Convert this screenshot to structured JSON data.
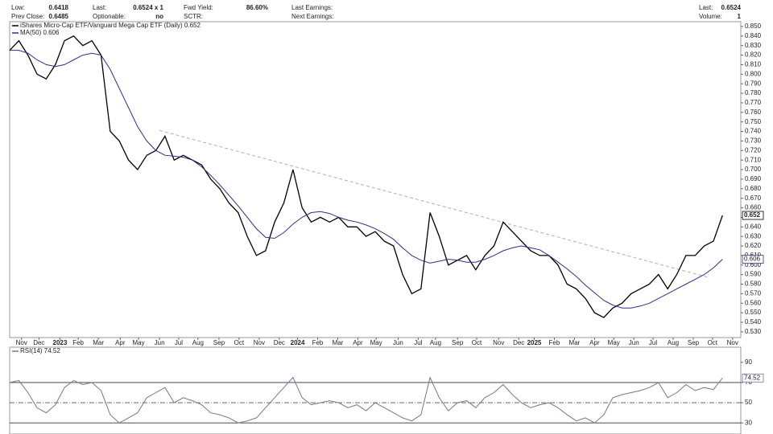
{
  "header": {
    "rows": [
      [
        {
          "label": "Low:",
          "value": "0.6418"
        },
        {
          "label": "Last:",
          "value": "0.6524 x 1"
        },
        {
          "label": "Fwd Yield:",
          "value": "86.60%"
        },
        {
          "label": "Last Earnings:"
        },
        {
          "label": "Last:",
          "value": "0.6524"
        }
      ],
      [
        {
          "label": "Prev Close:",
          "value": "0.6485"
        },
        {
          "label": "Optionable:",
          "value": "no"
        },
        {
          "label": "SCTR:"
        },
        {
          "label": "Next Earnings:"
        },
        {
          "label": "Volume:",
          "value": "1"
        }
      ]
    ]
  },
  "chart_data": [
    {
      "type": "line",
      "series": [
        {
          "name": "iShares Micro-Cap ETF/Vanguard Mega Cap ETF (Daily) 0.652",
          "color": "#000000",
          "values": [
            0.825,
            0.835,
            0.82,
            0.8,
            0.795,
            0.81,
            0.835,
            0.84,
            0.83,
            0.835,
            0.82,
            0.74,
            0.73,
            0.71,
            0.7,
            0.715,
            0.72,
            0.735,
            0.71,
            0.715,
            0.71,
            0.705,
            0.69,
            0.68,
            0.665,
            0.655,
            0.63,
            0.61,
            0.615,
            0.645,
            0.665,
            0.7,
            0.66,
            0.645,
            0.65,
            0.645,
            0.65,
            0.64,
            0.64,
            0.63,
            0.635,
            0.625,
            0.62,
            0.59,
            0.57,
            0.575,
            0.655,
            0.63,
            0.6,
            0.605,
            0.61,
            0.595,
            0.61,
            0.62,
            0.645,
            0.635,
            0.625,
            0.615,
            0.61,
            0.61,
            0.6,
            0.58,
            0.575,
            0.565,
            0.55,
            0.545,
            0.555,
            0.56,
            0.57,
            0.575,
            0.58,
            0.59,
            0.575,
            0.59,
            0.61,
            0.61,
            0.62,
            0.625,
            0.652
          ]
        },
        {
          "name": "MA(50) 0.606",
          "color": "#2e2e8a",
          "values": [
            0.825,
            0.825,
            0.822,
            0.815,
            0.81,
            0.808,
            0.81,
            0.815,
            0.82,
            0.822,
            0.82,
            0.805,
            0.785,
            0.765,
            0.745,
            0.73,
            0.72,
            0.715,
            0.714,
            0.713,
            0.71,
            0.703,
            0.694,
            0.684,
            0.673,
            0.662,
            0.65,
            0.638,
            0.629,
            0.628,
            0.634,
            0.643,
            0.65,
            0.655,
            0.656,
            0.654,
            0.65,
            0.647,
            0.645,
            0.642,
            0.638,
            0.633,
            0.627,
            0.618,
            0.61,
            0.605,
            0.602,
            0.604,
            0.606,
            0.605,
            0.603,
            0.603,
            0.606,
            0.61,
            0.615,
            0.618,
            0.62,
            0.618,
            0.616,
            0.61,
            0.603,
            0.596,
            0.588,
            0.579,
            0.571,
            0.563,
            0.558,
            0.555,
            0.555,
            0.557,
            0.56,
            0.565,
            0.57,
            0.575,
            0.58,
            0.585,
            0.59,
            0.597,
            0.606
          ]
        }
      ],
      "trendline": {
        "x": [
          16.4,
          76.5
        ],
        "y": [
          0.741,
          0.587
        ],
        "color": "#b0b0b0"
      },
      "xlim": [
        0,
        80
      ],
      "xticks": [
        {
          "value": 1.3,
          "label": "Nov"
        },
        {
          "value": 3.2,
          "label": "Dec"
        },
        {
          "value": 5.5,
          "label": "2023"
        },
        {
          "value": 7.5,
          "label": "Feb"
        },
        {
          "value": 9.7,
          "label": "Mar"
        },
        {
          "value": 12.1,
          "label": "Apr"
        },
        {
          "value": 14.1,
          "label": "May"
        },
        {
          "value": 16.4,
          "label": "Jun"
        },
        {
          "value": 18.5,
          "label": "Jul"
        },
        {
          "value": 20.6,
          "label": "Aug"
        },
        {
          "value": 22.9,
          "label": "Sep"
        },
        {
          "value": 25.1,
          "label": "Oct"
        },
        {
          "value": 27.3,
          "label": "Nov"
        },
        {
          "value": 29.5,
          "label": "Dec"
        },
        {
          "value": 31.5,
          "label": "2024"
        },
        {
          "value": 33.7,
          "label": "Feb"
        },
        {
          "value": 35.9,
          "label": "Mar"
        },
        {
          "value": 38.1,
          "label": "Apr"
        },
        {
          "value": 40.1,
          "label": "May"
        },
        {
          "value": 42.5,
          "label": "Jun"
        },
        {
          "value": 44.7,
          "label": "Jul"
        },
        {
          "value": 46.6,
          "label": "Aug"
        },
        {
          "value": 49,
          "label": "Sep"
        },
        {
          "value": 51.1,
          "label": "Oct"
        },
        {
          "value": 53.5,
          "label": "Nov"
        },
        {
          "value": 55.7,
          "label": "Dec"
        },
        {
          "value": 57.4,
          "label": "2025"
        },
        {
          "value": 59.6,
          "label": "Feb"
        },
        {
          "value": 61.8,
          "label": "Mar"
        },
        {
          "value": 64,
          "label": "Apr"
        },
        {
          "value": 66.1,
          "label": "May"
        },
        {
          "value": 68.3,
          "label": "Jun"
        },
        {
          "value": 70.4,
          "label": "Jul"
        },
        {
          "value": 72.6,
          "label": "Aug"
        },
        {
          "value": 74.8,
          "label": "Sep"
        },
        {
          "value": 76.9,
          "label": "Oct"
        },
        {
          "value": 79.1,
          "label": "Nov"
        }
      ],
      "ylim": [
        0.524,
        0.855
      ],
      "yticks": [
        {
          "value": 0.53,
          "label": "0.530"
        },
        {
          "value": 0.54,
          "label": "0.540"
        },
        {
          "value": 0.55,
          "label": "0.550"
        },
        {
          "value": 0.56,
          "label": "0.560"
        },
        {
          "value": 0.57,
          "label": "0.570"
        },
        {
          "value": 0.58,
          "label": "0.580"
        },
        {
          "value": 0.59,
          "label": "0.590"
        },
        {
          "value": 0.6,
          "label": "0.600"
        },
        {
          "value": 0.61,
          "label": "0.610"
        },
        {
          "value": 0.62,
          "label": "0.620"
        },
        {
          "value": 0.63,
          "label": "0.630"
        },
        {
          "value": 0.64,
          "label": "0.640"
        },
        {
          "value": 0.65,
          "label": "0.650"
        },
        {
          "value": 0.66,
          "label": "0.660"
        },
        {
          "value": 0.67,
          "label": "0.670"
        },
        {
          "value": 0.68,
          "label": "0.680"
        },
        {
          "value": 0.69,
          "label": "0.690"
        },
        {
          "value": 0.7,
          "label": "0.700"
        },
        {
          "value": 0.71,
          "label": "0.710"
        },
        {
          "value": 0.72,
          "label": "0.720"
        },
        {
          "value": 0.73,
          "label": "0.730"
        },
        {
          "value": 0.74,
          "label": "0.740"
        },
        {
          "value": 0.75,
          "label": "0.750"
        },
        {
          "value": 0.76,
          "label": "0.760"
        },
        {
          "value": 0.77,
          "label": "0.770"
        },
        {
          "value": 0.78,
          "label": "0.780"
        },
        {
          "value": 0.79,
          "label": "0.790"
        },
        {
          "value": 0.8,
          "label": "0.800"
        },
        {
          "value": 0.81,
          "label": "0.810"
        },
        {
          "value": 0.82,
          "label": "0.820"
        },
        {
          "value": 0.83,
          "label": "0.830"
        },
        {
          "value": 0.84,
          "label": "0.840"
        },
        {
          "value": 0.85,
          "label": "0.850"
        }
      ]
    },
    {
      "type": "line",
      "series": [
        {
          "name": "RSI(14) 74.52",
          "color": "#6b7896",
          "values": [
            70,
            72,
            60,
            45,
            40,
            48,
            65,
            72,
            68,
            70,
            62,
            38,
            30,
            35,
            40,
            55,
            60,
            65,
            50,
            55,
            52,
            48,
            40,
            38,
            35,
            30,
            32,
            35,
            45,
            55,
            65,
            75,
            55,
            48,
            50,
            52,
            50,
            45,
            48,
            42,
            50,
            45,
            40,
            35,
            32,
            38,
            75,
            55,
            42,
            50,
            52,
            45,
            55,
            60,
            68,
            58,
            50,
            45,
            48,
            50,
            45,
            38,
            32,
            35,
            30,
            38,
            55,
            58,
            60,
            62,
            65,
            70,
            55,
            60,
            68,
            62,
            65,
            63,
            74.52
          ]
        }
      ],
      "xlim": [
        0,
        80
      ],
      "ylim": [
        19,
        105
      ],
      "yticks": [
        30,
        50,
        70,
        90
      ]
    }
  ]
}
